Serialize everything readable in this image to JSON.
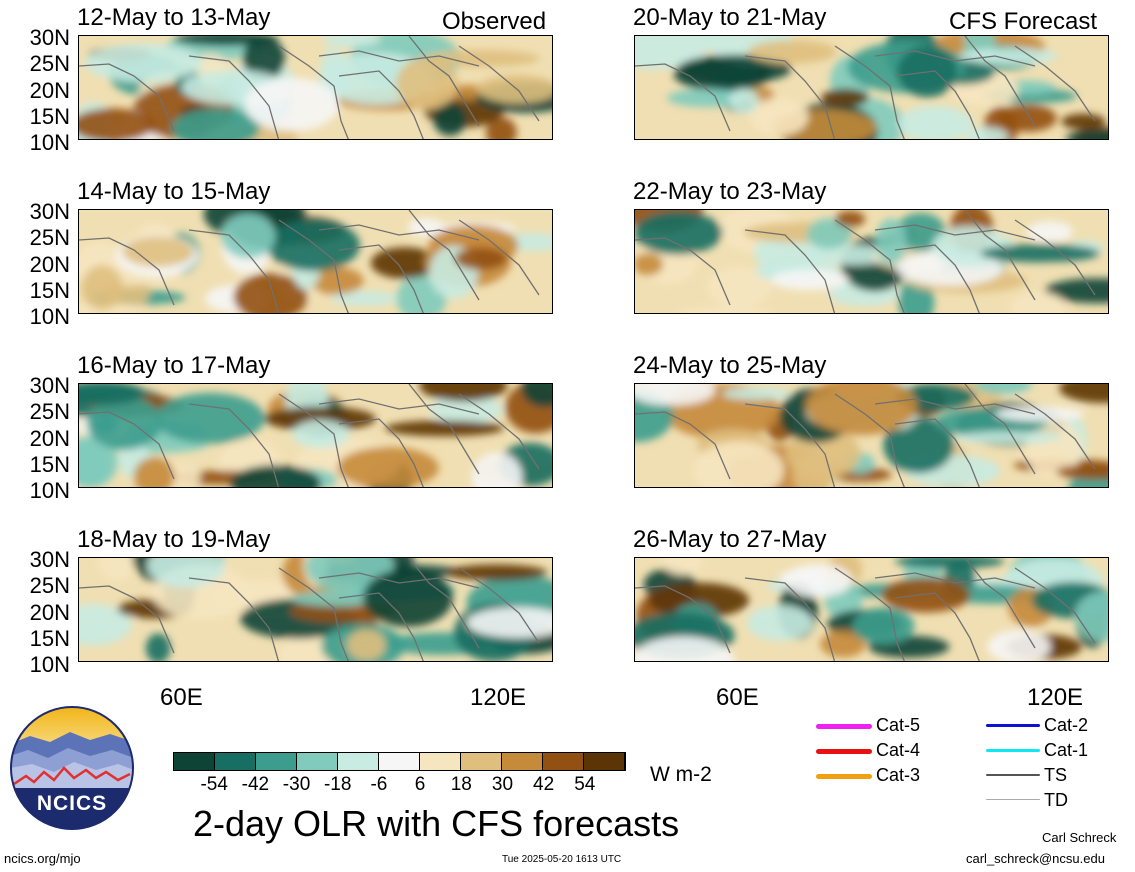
{
  "header": {
    "observed_label": "Observed",
    "forecast_label": "CFS Forecast"
  },
  "panels_left": [
    {
      "title": "12-May to 13-May"
    },
    {
      "title": "14-May to 15-May"
    },
    {
      "title": "16-May to 17-May"
    },
    {
      "title": "18-May to 19-May"
    }
  ],
  "panels_right": [
    {
      "title": "20-May to 21-May"
    },
    {
      "title": "22-May to 23-May"
    },
    {
      "title": "24-May to 25-May"
    },
    {
      "title": "26-May to 27-May"
    }
  ],
  "axes": {
    "lat_labels": [
      "30N",
      "25N",
      "20N",
      "15N",
      "10N"
    ],
    "lon_labels": [
      "60E",
      "120E"
    ]
  },
  "colorbar": {
    "colors": [
      "#0e4436",
      "#176e62",
      "#3c9d8e",
      "#80cbbc",
      "#c8ebe2",
      "#f6f6f6",
      "#f6e6c0",
      "#dfbf7e",
      "#c58a3a",
      "#925012",
      "#5c3507"
    ],
    "labels": [
      "-54",
      "-42",
      "-30",
      "-18",
      "-6",
      "6",
      "18",
      "30",
      "42",
      "54"
    ],
    "units": "W m-2"
  },
  "legend": {
    "items": [
      {
        "label": "Cat-5",
        "color": "#f020f0"
      },
      {
        "label": "Cat-4",
        "color": "#e81010"
      },
      {
        "label": "Cat-3",
        "color": "#f0a010"
      },
      {
        "label": "Cat-2",
        "color": "#1010d0"
      },
      {
        "label": "Cat-1",
        "color": "#10e8f0"
      },
      {
        "label": "TS",
        "color": "#555555"
      },
      {
        "label": "TD",
        "color": "#aaaaaa"
      }
    ]
  },
  "logo": {
    "text": "NCICS"
  },
  "footer": {
    "title": "2-day OLR with CFS forecasts",
    "url": "ncics.org/mjo",
    "timestamp": "Tue 2025-05-20 1613 UTC",
    "author": "Carl Schreck",
    "email": "carl_schreck@ncsu.edu"
  }
}
